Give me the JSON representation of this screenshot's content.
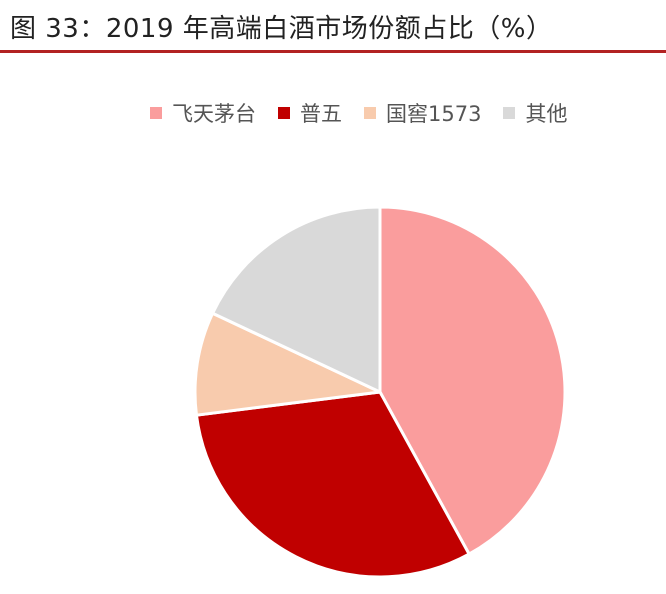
{
  "header": {
    "title": "图 33：2019 年高端白酒市场份额占比（%）"
  },
  "chart_data": {
    "type": "pie",
    "title": "图 33：2019 年高端白酒市场份额占比（%）",
    "unit": "%",
    "legend_position": "top",
    "slices": [
      {
        "name": "飞天茅台",
        "value": 42,
        "color": "#fa9d9d"
      },
      {
        "name": "普五",
        "value": 31,
        "color": "#c00000"
      },
      {
        "name": "国窖1573",
        "value": 9,
        "color": "#f8cbad"
      },
      {
        "name": "其他",
        "value": 18,
        "color": "#d9d9d9"
      }
    ]
  },
  "colors": {
    "title_rule": "#b22222",
    "slice_border": "#ffffff"
  }
}
